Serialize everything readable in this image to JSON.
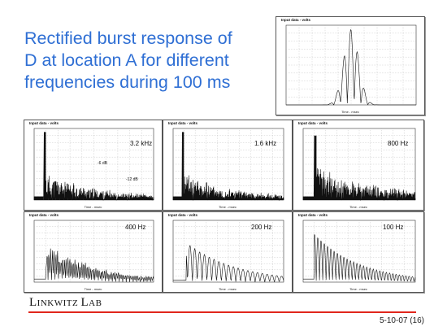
{
  "slide": {
    "title_lines": [
      "Rectified burst response of",
      "D at location A for different",
      "frequencies during 100 ms"
    ],
    "logo": {
      "part1": "L",
      "part2": "INKWITZ ",
      "part3": "L",
      "part4": "AB"
    },
    "footer": "5-10-07 (16)",
    "accent_color": "#e0261c",
    "title_color": "#2f6fd4"
  },
  "panels": {
    "burst": {
      "title": "Input data - volts",
      "xlabel": "Time - msec"
    },
    "p1": {
      "title": "Input data - volts",
      "freq": "3.2 kHz",
      "note1": "-6 dB",
      "note2": "-12 dB",
      "xlabel": "Time - msec"
    },
    "p2": {
      "title": "Input data - volts",
      "freq": "1.6 kHz",
      "xlabel": "Time - msec"
    },
    "p3": {
      "title": "Input data - volts",
      "freq": "800 Hz",
      "xlabel": "Time - msec"
    },
    "p4": {
      "title": "Input data - volts",
      "freq": "400 Hz",
      "xlabel": "Time - msec"
    },
    "p5": {
      "title": "Input data - volts",
      "freq": "200 Hz",
      "xlabel": "Time - msec"
    },
    "p6": {
      "title": "Input data - volts",
      "freq": "100 Hz",
      "xlabel": "Time - msec"
    }
  }
}
